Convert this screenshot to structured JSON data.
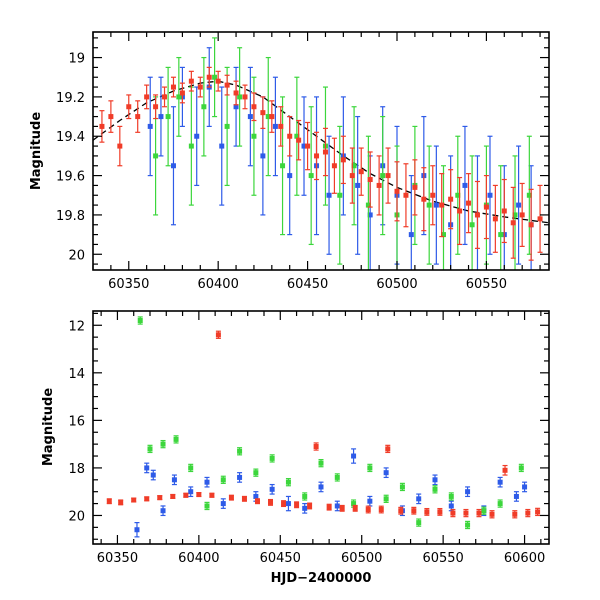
{
  "chart_data": [
    {
      "type": "scatter",
      "panel": "top",
      "title": "",
      "xlabel": "",
      "ylabel": "Magnitude",
      "xlim": [
        60330,
        60585
      ],
      "ylim": [
        20.08,
        18.87
      ],
      "y_inverted": true,
      "x_ticks": [
        60350,
        60400,
        60450,
        60500,
        60550
      ],
      "y_ticks": [
        19,
        19.2,
        19.4,
        19.6,
        19.8,
        20
      ],
      "y_tick_labels": [
        "19",
        "19.2",
        "19.4",
        "19.6",
        "19.8",
        "20"
      ],
      "x_tick_labels": [
        "60350",
        "60400",
        "60450",
        "60500",
        "60550"
      ],
      "model_curve": {
        "style": "dashed",
        "color": "#000000",
        "x": [
          60330,
          60345,
          60360,
          60375,
          60390,
          60400,
          60410,
          60425,
          60440,
          60455,
          60470,
          60485,
          60500,
          60520,
          60540,
          60560,
          60585
        ],
        "y": [
          19.42,
          19.32,
          19.23,
          19.17,
          19.13,
          19.12,
          19.14,
          19.2,
          19.3,
          19.4,
          19.5,
          19.59,
          19.66,
          19.73,
          19.78,
          19.81,
          19.84
        ]
      },
      "series": [
        {
          "color": "#2E5BE8",
          "x": [
            60362,
            60368,
            60375,
            60380,
            60388,
            60395,
            60402,
            60410,
            60418,
            60425,
            60432,
            60440,
            60448,
            60455,
            60462,
            60470,
            60478,
            60485,
            60492,
            60500,
            60508,
            60515,
            60522,
            60530,
            60538,
            60545,
            60552,
            60560,
            60568,
            60575
          ],
          "y": [
            19.35,
            19.3,
            19.55,
            19.2,
            19.4,
            19.15,
            19.45,
            19.25,
            19.3,
            19.5,
            19.35,
            19.6,
            19.45,
            19.55,
            19.7,
            19.5,
            19.65,
            19.8,
            19.55,
            19.7,
            19.9,
            19.6,
            19.75,
            19.85,
            19.65,
            19.8,
            19.7,
            19.9,
            19.75,
            19.85
          ],
          "err": [
            0.25,
            0.2,
            0.3,
            0.15,
            0.25,
            0.2,
            0.3,
            0.2,
            0.25,
            0.3,
            0.25,
            0.3,
            0.25,
            0.35,
            0.3,
            0.3,
            0.35,
            0.3,
            0.3,
            0.35,
            0.3,
            0.3,
            0.3,
            0.35,
            0.3,
            0.3,
            0.3,
            0.35,
            0.3,
            0.3
          ]
        },
        {
          "color": "#3CD63C",
          "x": [
            60365,
            60372,
            60378,
            60385,
            60392,
            60398,
            60405,
            60412,
            60420,
            60428,
            60436,
            60444,
            60452,
            60460,
            60468,
            60476,
            60484,
            60492,
            60500,
            60510,
            60518,
            60526,
            60534,
            60542,
            60550,
            60558,
            60566,
            60574
          ],
          "y": [
            19.5,
            19.3,
            19.2,
            19.45,
            19.25,
            19.1,
            19.35,
            19.2,
            19.4,
            19.3,
            19.55,
            19.4,
            19.6,
            19.45,
            19.7,
            19.55,
            19.75,
            19.6,
            19.8,
            19.65,
            19.75,
            19.9,
            19.7,
            19.85,
            19.75,
            19.9,
            19.8,
            19.7
          ],
          "err": [
            0.3,
            0.25,
            0.2,
            0.3,
            0.25,
            0.2,
            0.3,
            0.25,
            0.3,
            0.3,
            0.35,
            0.3,
            0.35,
            0.3,
            0.35,
            0.3,
            0.35,
            0.3,
            0.35,
            0.3,
            0.3,
            0.35,
            0.3,
            0.35,
            0.3,
            0.35,
            0.3,
            0.3
          ]
        },
        {
          "color": "#F03C28",
          "x": [
            60335,
            60340,
            60345,
            60350,
            60355,
            60360,
            60365,
            60370,
            60375,
            60380,
            60385,
            60390,
            60395,
            60400,
            60405,
            60410,
            60415,
            60420,
            60425,
            60430,
            60435,
            60440,
            60445,
            60450,
            60455,
            60460,
            60465,
            60470,
            60475,
            60480,
            60485,
            60490,
            60495,
            60500,
            60505,
            60510,
            60515,
            60520,
            60525,
            60530,
            60535,
            60540,
            60545,
            60550,
            60555,
            60560,
            60565,
            60570,
            60575,
            60580
          ],
          "y": [
            19.35,
            19.3,
            19.45,
            19.25,
            19.3,
            19.2,
            19.25,
            19.2,
            19.15,
            19.18,
            19.12,
            19.15,
            19.1,
            19.12,
            19.14,
            19.18,
            19.2,
            19.25,
            19.28,
            19.3,
            19.35,
            19.4,
            19.42,
            19.45,
            19.5,
            19.48,
            19.55,
            19.52,
            19.6,
            19.58,
            19.62,
            19.65,
            19.6,
            19.68,
            19.7,
            19.66,
            19.72,
            19.7,
            19.75,
            19.72,
            19.78,
            19.74,
            19.8,
            19.76,
            19.82,
            19.78,
            19.84,
            19.8,
            19.85,
            19.82
          ],
          "err": [
            0.08,
            0.08,
            0.1,
            0.06,
            0.08,
            0.06,
            0.06,
            0.05,
            0.05,
            0.05,
            0.05,
            0.05,
            0.05,
            0.05,
            0.05,
            0.06,
            0.06,
            0.07,
            0.08,
            0.08,
            0.1,
            0.1,
            0.1,
            0.12,
            0.12,
            0.12,
            0.14,
            0.12,
            0.14,
            0.12,
            0.14,
            0.15,
            0.14,
            0.15,
            0.16,
            0.14,
            0.16,
            0.15,
            0.16,
            0.15,
            0.17,
            0.15,
            0.17,
            0.16,
            0.17,
            0.16,
            0.18,
            0.16,
            0.18,
            0.17
          ]
        }
      ]
    },
    {
      "type": "scatter",
      "panel": "bottom",
      "title": "",
      "xlabel": "HJD−2400000",
      "ylabel": "Magnitude",
      "xlim": [
        60335,
        60615
      ],
      "ylim": [
        21.2,
        11.4
      ],
      "y_inverted": true,
      "x_ticks": [
        60350,
        60400,
        60450,
        60500,
        60550,
        60600
      ],
      "y_ticks": [
        12,
        14,
        16,
        18,
        20
      ],
      "y_tick_labels": [
        "12",
        "14",
        "16",
        "18",
        "20"
      ],
      "x_tick_labels": [
        "60350",
        "60400",
        "60450",
        "60500",
        "60550",
        "60600"
      ],
      "series": [
        {
          "color": "#2E5BE8",
          "x": [
            60362,
            60368,
            60372,
            60378,
            60385,
            60395,
            60405,
            60415,
            60425,
            60435,
            60445,
            60455,
            60465,
            60475,
            60485,
            60495,
            60505,
            60515,
            60525,
            60535,
            60545,
            60555,
            60565,
            60575,
            60585,
            60595,
            60600
          ],
          "y": [
            20.6,
            18.0,
            18.3,
            19.8,
            18.5,
            19.0,
            18.6,
            19.5,
            18.4,
            19.2,
            18.9,
            19.5,
            19.7,
            18.8,
            19.6,
            17.5,
            19.4,
            18.2,
            19.8,
            19.3,
            18.5,
            19.6,
            19.0,
            19.8,
            18.6,
            19.2,
            18.8
          ],
          "err": [
            0.3,
            0.2,
            0.2,
            0.2,
            0.2,
            0.2,
            0.2,
            0.2,
            0.2,
            0.2,
            0.2,
            0.3,
            0.2,
            0.2,
            0.2,
            0.3,
            0.2,
            0.2,
            0.2,
            0.2,
            0.2,
            0.2,
            0.2,
            0.2,
            0.2,
            0.2,
            0.2
          ]
        },
        {
          "color": "#3CD63C",
          "x": [
            60364,
            60370,
            60378,
            60386,
            60395,
            60405,
            60415,
            60425,
            60435,
            60445,
            60455,
            60465,
            60475,
            60485,
            60495,
            60505,
            60515,
            60525,
            60535,
            60545,
            60555,
            60565,
            60575,
            60585,
            60598
          ],
          "y": [
            11.8,
            17.2,
            17.0,
            16.8,
            18.0,
            19.6,
            18.5,
            17.3,
            18.2,
            17.6,
            18.6,
            19.2,
            17.8,
            18.4,
            19.5,
            18.0,
            19.3,
            18.8,
            20.3,
            18.9,
            19.2,
            20.4,
            19.8,
            19.5,
            18.0
          ],
          "err": [
            0.15,
            0.15,
            0.15,
            0.15,
            0.15,
            0.15,
            0.15,
            0.15,
            0.15,
            0.15,
            0.15,
            0.15,
            0.15,
            0.15,
            0.15,
            0.15,
            0.15,
            0.15,
            0.15,
            0.15,
            0.15,
            0.15,
            0.15,
            0.15,
            0.15
          ]
        },
        {
          "color": "#F03C28",
          "x": [
            60345,
            60352,
            60360,
            60368,
            60376,
            60384,
            60392,
            60400,
            60408,
            60412,
            60420,
            60428,
            60436,
            60444,
            60452,
            60460,
            60468,
            60472,
            60480,
            60488,
            60496,
            60504,
            60512,
            60516,
            60524,
            60532,
            60540,
            60548,
            60556,
            60564,
            60572,
            60580,
            60588,
            60594,
            60602,
            60608
          ],
          "y": [
            19.4,
            19.45,
            19.35,
            19.3,
            19.25,
            19.2,
            19.15,
            19.12,
            19.15,
            12.4,
            19.25,
            19.3,
            19.4,
            19.45,
            19.5,
            19.55,
            19.6,
            17.1,
            19.65,
            19.7,
            19.7,
            19.75,
            19.75,
            17.2,
            19.8,
            19.8,
            19.85,
            19.85,
            19.9,
            19.9,
            19.9,
            19.95,
            18.1,
            19.95,
            19.9,
            19.85
          ],
          "err": [
            0.1,
            0.1,
            0.08,
            0.08,
            0.08,
            0.08,
            0.08,
            0.08,
            0.08,
            0.15,
            0.1,
            0.1,
            0.1,
            0.12,
            0.12,
            0.12,
            0.12,
            0.15,
            0.12,
            0.12,
            0.12,
            0.14,
            0.14,
            0.15,
            0.14,
            0.14,
            0.14,
            0.14,
            0.15,
            0.15,
            0.15,
            0.15,
            0.2,
            0.15,
            0.15,
            0.15
          ]
        }
      ]
    }
  ]
}
